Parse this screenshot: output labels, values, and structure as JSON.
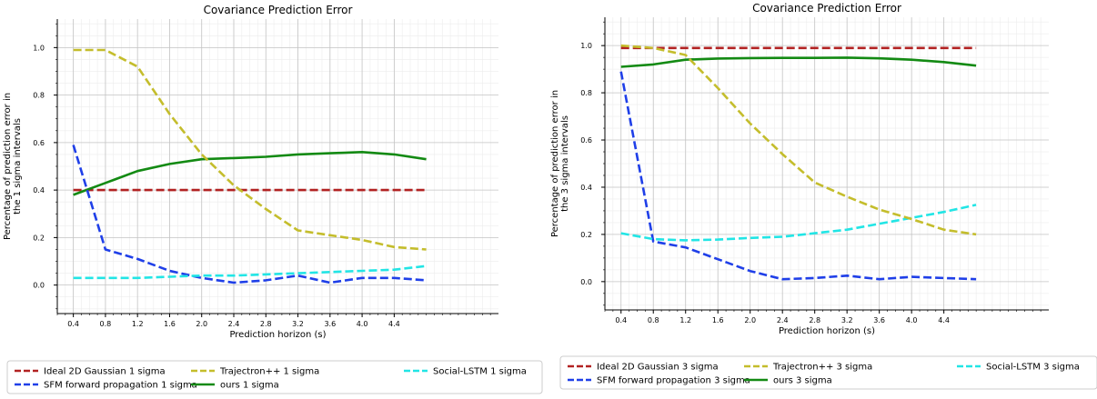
{
  "chart_data": [
    {
      "type": "line",
      "title": "Covariance Prediction Error",
      "xlabel": "Prediction horizon (s)",
      "ylabel": "Percentage of prediction error in the 1 sigma intervals",
      "ylabel_lines": [
        "Percentage of prediction error in",
        "the 1 sigma intervals"
      ],
      "xlim": [
        0.2,
        5.7
      ],
      "ylim": [
        -0.12,
        1.12
      ],
      "x": [
        0.4,
        0.8,
        1.2,
        1.6,
        2.0,
        2.4,
        2.8,
        3.2,
        3.6,
        4.0,
        4.4,
        4.8
      ],
      "x_ticks": [
        "0.4",
        "0.8",
        "1.2",
        "1.6",
        "2.0",
        "2.4",
        "2.8",
        "3.2",
        "3.6",
        "4.0",
        "4.4"
      ],
      "y_ticks": [
        "0.0",
        "0.2",
        "0.4",
        "0.6",
        "0.8",
        "1.0"
      ],
      "grid": true,
      "legend_placement": "below",
      "series": [
        {
          "name": "Ideal 2D Gaussian 1 sigma",
          "color": "#b22222",
          "style": "dashed",
          "values": [
            0.4,
            0.4,
            0.4,
            0.4,
            0.4,
            0.4,
            0.4,
            0.4,
            0.4,
            0.4,
            0.4,
            0.4
          ]
        },
        {
          "name": "ours 1 sigma",
          "color": "#138a13",
          "style": "solid",
          "values": [
            0.38,
            0.43,
            0.48,
            0.51,
            0.53,
            0.535,
            0.54,
            0.55,
            0.555,
            0.56,
            0.55,
            0.53
          ]
        },
        {
          "name": "SFM forward propagation 1 sigma",
          "color": "#1f3fe8",
          "style": "dashed",
          "values": [
            0.59,
            0.15,
            0.11,
            0.06,
            0.03,
            0.01,
            0.02,
            0.04,
            0.01,
            0.03,
            0.03,
            0.02
          ]
        },
        {
          "name": "Social-LSTM 1 sigma",
          "color": "#22e5e5",
          "style": "dashed",
          "values": [
            0.03,
            0.03,
            0.03,
            0.035,
            0.04,
            0.04,
            0.045,
            0.05,
            0.055,
            0.06,
            0.065,
            0.08
          ]
        },
        {
          "name": "Trajectron++ 1 sigma",
          "color": "#c4bd2c",
          "style": "dashed",
          "values": [
            0.99,
            0.99,
            0.92,
            0.72,
            0.55,
            0.42,
            0.32,
            0.23,
            0.21,
            0.19,
            0.16,
            0.15
          ]
        }
      ]
    },
    {
      "type": "line",
      "title": "Covariance Prediction Error",
      "xlabel": "Prediction horizon (s)",
      "ylabel": "Percentage of prediction error in the 3 sigma intervals",
      "ylabel_lines": [
        "Percentage of prediction error in",
        "the 3 sigma intervals"
      ],
      "xlim": [
        0.2,
        5.7
      ],
      "ylim": [
        -0.12,
        1.12
      ],
      "x": [
        0.4,
        0.8,
        1.2,
        1.6,
        2.0,
        2.4,
        2.8,
        3.2,
        3.6,
        4.0,
        4.4,
        4.8
      ],
      "x_ticks": [
        "0.4",
        "0.8",
        "1.2",
        "1.6",
        "2.0",
        "2.4",
        "2.8",
        "3.2",
        "3.6",
        "4.0",
        "4.4"
      ],
      "y_ticks": [
        "0.0",
        "0.2",
        "0.4",
        "0.6",
        "0.8",
        "1.0"
      ],
      "grid": true,
      "legend_placement": "below",
      "series": [
        {
          "name": "Ideal 2D Gaussian 3 sigma",
          "color": "#b22222",
          "style": "dashed",
          "values": [
            0.99,
            0.99,
            0.99,
            0.99,
            0.99,
            0.99,
            0.99,
            0.99,
            0.99,
            0.99,
            0.99,
            0.99
          ]
        },
        {
          "name": "ours 3 sigma",
          "color": "#138a13",
          "style": "solid",
          "values": [
            0.91,
            0.92,
            0.94,
            0.945,
            0.947,
            0.948,
            0.948,
            0.949,
            0.946,
            0.94,
            0.93,
            0.915
          ]
        },
        {
          "name": "SFM forward propagation 3 sigma",
          "color": "#1f3fe8",
          "style": "dashed",
          "values": [
            0.89,
            0.17,
            0.145,
            0.095,
            0.045,
            0.01,
            0.015,
            0.025,
            0.01,
            0.02,
            0.015,
            0.01
          ]
        },
        {
          "name": "Social-LSTM 3 sigma",
          "color": "#22e5e5",
          "style": "dashed",
          "values": [
            0.205,
            0.18,
            0.175,
            0.178,
            0.185,
            0.19,
            0.205,
            0.22,
            0.245,
            0.27,
            0.295,
            0.325
          ]
        },
        {
          "name": "Trajectron++ 3 sigma",
          "color": "#c4bd2c",
          "style": "dashed",
          "values": [
            1.0,
            0.99,
            0.96,
            0.82,
            0.67,
            0.54,
            0.42,
            0.36,
            0.305,
            0.265,
            0.22,
            0.2
          ]
        }
      ]
    }
  ]
}
